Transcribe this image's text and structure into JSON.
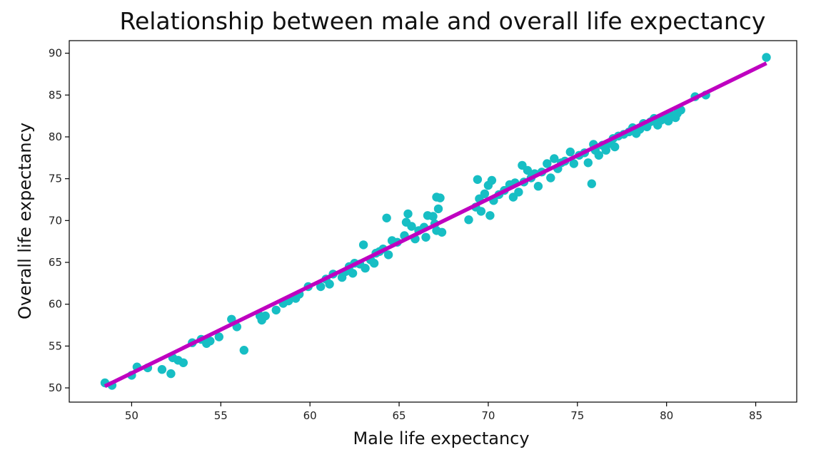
{
  "chart_data": {
    "type": "scatter",
    "title": "Relationship between male and overall life expectancy",
    "xlabel": "Male life expectancy",
    "ylabel": "Overall life expectancy",
    "xlim": [
      46.5,
      87.3
    ],
    "ylim": [
      48.3,
      91.5
    ],
    "xticks": [
      50,
      55,
      60,
      65,
      70,
      75,
      80,
      85
    ],
    "yticks": [
      50,
      55,
      60,
      65,
      70,
      75,
      80,
      85,
      90
    ],
    "grid": false,
    "legend": "none",
    "point_color": "#17bec4",
    "line_color": "#bf00c0",
    "fit_line": {
      "x": [
        48.5,
        85.6
      ],
      "y": [
        50.2,
        88.8
      ]
    },
    "series": [
      {
        "points": [
          [
            48.5,
            50.6
          ],
          [
            48.9,
            50.3
          ],
          [
            50.0,
            51.5
          ],
          [
            50.3,
            52.5
          ],
          [
            50.9,
            52.4
          ],
          [
            51.7,
            52.2
          ],
          [
            52.2,
            51.7
          ],
          [
            52.3,
            53.6
          ],
          [
            52.6,
            53.3
          ],
          [
            52.9,
            53.0
          ],
          [
            53.4,
            55.4
          ],
          [
            53.9,
            55.8
          ],
          [
            54.2,
            55.3
          ],
          [
            54.4,
            55.6
          ],
          [
            54.9,
            56.1
          ],
          [
            55.6,
            58.2
          ],
          [
            55.9,
            57.3
          ],
          [
            56.3,
            54.5
          ],
          [
            57.2,
            58.6
          ],
          [
            57.3,
            58.1
          ],
          [
            57.5,
            58.6
          ],
          [
            58.1,
            59.3
          ],
          [
            58.5,
            60.1
          ],
          [
            58.8,
            60.4
          ],
          [
            59.2,
            60.7
          ],
          [
            59.4,
            61.2
          ],
          [
            59.9,
            62.1
          ],
          [
            60.6,
            62.1
          ],
          [
            60.9,
            63.0
          ],
          [
            61.1,
            62.4
          ],
          [
            61.3,
            63.6
          ],
          [
            61.8,
            63.2
          ],
          [
            62.0,
            63.9
          ],
          [
            62.2,
            64.5
          ],
          [
            62.4,
            63.7
          ],
          [
            62.5,
            64.9
          ],
          [
            62.8,
            64.8
          ],
          [
            63.0,
            67.1
          ],
          [
            63.1,
            64.3
          ],
          [
            63.4,
            65.3
          ],
          [
            63.6,
            64.9
          ],
          [
            63.7,
            66.1
          ],
          [
            63.9,
            66.3
          ],
          [
            64.1,
            66.6
          ],
          [
            64.3,
            70.3
          ],
          [
            64.4,
            65.9
          ],
          [
            64.6,
            67.6
          ],
          [
            64.9,
            67.4
          ],
          [
            65.3,
            68.2
          ],
          [
            65.4,
            69.8
          ],
          [
            65.5,
            70.8
          ],
          [
            65.7,
            69.3
          ],
          [
            65.9,
            67.8
          ],
          [
            66.1,
            68.8
          ],
          [
            66.4,
            69.2
          ],
          [
            66.5,
            68.0
          ],
          [
            66.6,
            70.6
          ],
          [
            66.9,
            70.5
          ],
          [
            67.0,
            69.6
          ],
          [
            67.1,
            72.8
          ],
          [
            67.1,
            68.8
          ],
          [
            67.2,
            71.4
          ],
          [
            67.3,
            72.7
          ],
          [
            67.4,
            68.6
          ],
          [
            68.9,
            70.1
          ],
          [
            69.3,
            71.6
          ],
          [
            69.4,
            74.9
          ],
          [
            69.5,
            72.6
          ],
          [
            69.6,
            71.1
          ],
          [
            69.8,
            73.2
          ],
          [
            70.0,
            74.2
          ],
          [
            70.1,
            70.6
          ],
          [
            70.2,
            74.8
          ],
          [
            70.3,
            72.4
          ],
          [
            70.6,
            73.1
          ],
          [
            70.9,
            73.6
          ],
          [
            71.2,
            74.3
          ],
          [
            71.4,
            72.8
          ],
          [
            71.5,
            74.5
          ],
          [
            71.7,
            73.4
          ],
          [
            71.9,
            76.6
          ],
          [
            72.0,
            74.6
          ],
          [
            72.2,
            76.0
          ],
          [
            72.4,
            75.1
          ],
          [
            72.6,
            75.6
          ],
          [
            72.8,
            74.1
          ],
          [
            73.0,
            75.8
          ],
          [
            73.3,
            76.8
          ],
          [
            73.5,
            75.1
          ],
          [
            73.7,
            77.4
          ],
          [
            73.9,
            76.2
          ],
          [
            74.1,
            76.9
          ],
          [
            74.3,
            77.1
          ],
          [
            74.6,
            78.2
          ],
          [
            74.8,
            76.8
          ],
          [
            75.1,
            77.8
          ],
          [
            75.4,
            78.1
          ],
          [
            75.6,
            76.9
          ],
          [
            75.8,
            74.4
          ],
          [
            75.9,
            79.1
          ],
          [
            76.0,
            78.4
          ],
          [
            76.2,
            77.8
          ],
          [
            76.4,
            79.0
          ],
          [
            76.6,
            78.4
          ],
          [
            76.8,
            79.2
          ],
          [
            77.0,
            79.8
          ],
          [
            77.1,
            78.8
          ],
          [
            77.3,
            80.1
          ],
          [
            77.6,
            80.3
          ],
          [
            77.9,
            80.6
          ],
          [
            78.1,
            81.1
          ],
          [
            78.3,
            80.4
          ],
          [
            78.5,
            80.9
          ],
          [
            78.7,
            81.6
          ],
          [
            78.9,
            81.2
          ],
          [
            79.1,
            81.8
          ],
          [
            79.3,
            82.2
          ],
          [
            79.5,
            81.4
          ],
          [
            79.7,
            82.0
          ],
          [
            79.9,
            82.4
          ],
          [
            80.1,
            81.9
          ],
          [
            80.3,
            82.6
          ],
          [
            80.5,
            82.3
          ],
          [
            80.6,
            82.8
          ],
          [
            80.8,
            83.2
          ],
          [
            81.6,
            84.8
          ],
          [
            82.2,
            85.0
          ],
          [
            85.6,
            89.5
          ]
        ]
      }
    ]
  }
}
